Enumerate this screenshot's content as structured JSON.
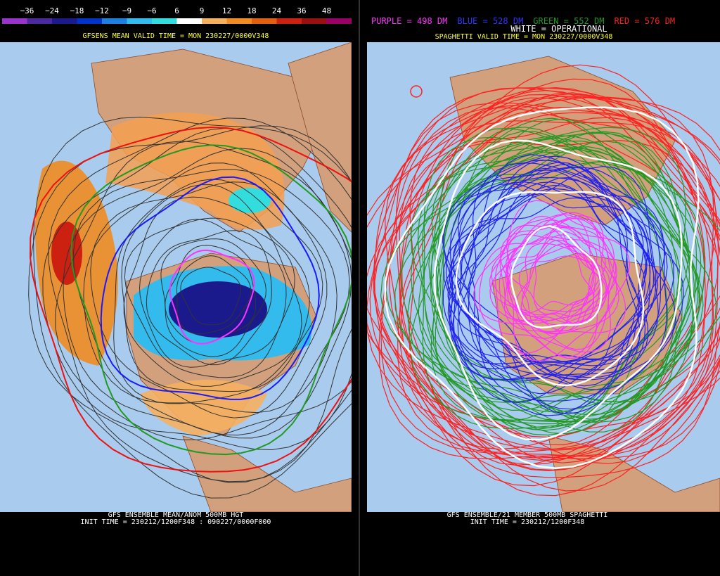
{
  "left_panel": {
    "legend": {
      "labels": [
        "−36",
        "−24",
        "−18",
        "−12",
        "−9",
        "−6",
        "6",
        "9",
        "12",
        "18",
        "24",
        "36",
        "48"
      ],
      "colors": [
        "#9933cc",
        "#4b2aa0",
        "#1a1a8c",
        "#0033cc",
        "#1e7fe0",
        "#33bbee",
        "#33dddd",
        "#ffffff",
        "#f5b060",
        "#f08c20",
        "#e06010",
        "#cc2010",
        "#991010",
        "#990066"
      ]
    },
    "header": "GFSENS MEAN VALID TIME = MON 230227/0000V348",
    "footer": [
      "GFS ENSEMBLE MEAN/ANOM 500MB HGT",
      "INIT TIME = 230212/1200F348 : 090227/0000F000"
    ]
  },
  "right_panel": {
    "key": [
      {
        "text": "PURPLE = 498 DM",
        "color": "#ff33ff"
      },
      {
        "text": "BLUE = 528 DM",
        "color": "#3333ff"
      },
      {
        "text": "GREEN = 552 DM",
        "color": "#229922"
      },
      {
        "text": "RED = 576 DM",
        "color": "#ff2020"
      }
    ],
    "operational": "WHITE = OPERATIONAL",
    "header": "SPAGHETTI VALID TIME = MON 230227/0000V348",
    "footer": [
      "GFS ENSEMBLE/21 MEMBER 500MB SPAGHETTI",
      "INIT TIME = 230212/1200F348"
    ]
  }
}
